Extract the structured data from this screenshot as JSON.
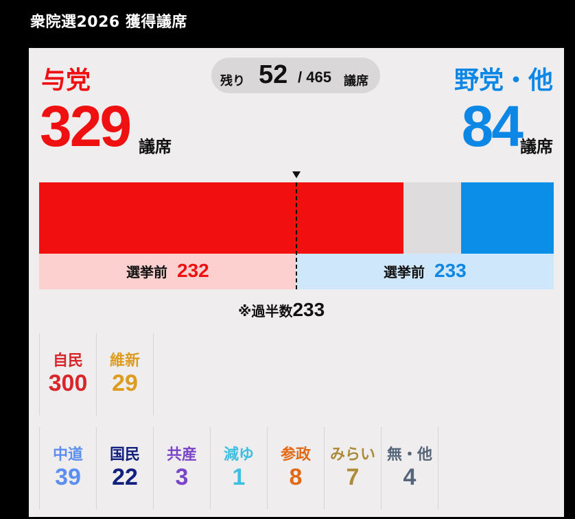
{
  "header": {
    "title": "衆院選2026 獲得議席"
  },
  "summary": {
    "ruling": {
      "label": "与党",
      "seats": "329",
      "unit": "議席",
      "color": "#ef1111"
    },
    "opposition": {
      "label": "野党・他",
      "seats": "84",
      "unit": "議席",
      "color": "#0d87e6"
    },
    "remaining": {
      "label": "残り",
      "value": "52",
      "total": "/ 465",
      "unit": "議席"
    }
  },
  "chart_data": {
    "type": "bar",
    "total_seats": 465,
    "series": [
      {
        "name": "与党",
        "value": 329,
        "color": "#f20f0f"
      },
      {
        "name": "残り",
        "value": 52,
        "color": "#dedcdd"
      },
      {
        "name": "野党・他",
        "value": 84,
        "color": "#0a8ee8"
      }
    ],
    "previous": [
      {
        "label": "選挙前",
        "value": "232",
        "value_num": 232,
        "bg": "#fdd0d0",
        "color": "#ef1111"
      },
      {
        "label": "選挙前",
        "value": "233",
        "value_num": 233,
        "bg": "#cfe7fb",
        "color": "#0d87e6"
      }
    ],
    "majority": {
      "label": "※過半数",
      "value": "233",
      "value_num": 233
    }
  },
  "parties": {
    "ruling": [
      {
        "name": "自民",
        "seats": "300",
        "color": "#d8262b"
      },
      {
        "name": "維新",
        "seats": "29",
        "color": "#dd9c20"
      }
    ],
    "others": [
      {
        "name": "中道",
        "seats": "39",
        "color": "#5b8ef0"
      },
      {
        "name": "国民",
        "seats": "22",
        "color": "#14207e"
      },
      {
        "name": "共産",
        "seats": "3",
        "color": "#7a45c8"
      },
      {
        "name": "減ゆ",
        "seats": "1",
        "color": "#3cbfe0"
      },
      {
        "name": "参政",
        "seats": "8",
        "color": "#e26a17"
      },
      {
        "name": "みらい",
        "seats": "7",
        "color": "#ab8a3a"
      },
      {
        "name": "無・他",
        "seats": "4",
        "color": "#55657a"
      }
    ]
  }
}
